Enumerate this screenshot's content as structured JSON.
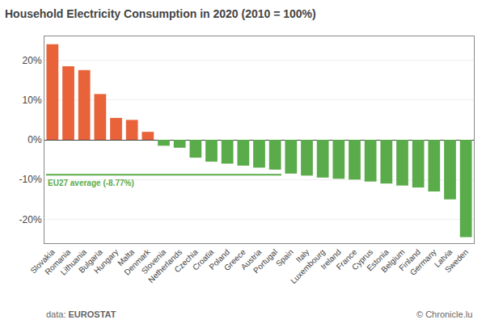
{
  "chart_data": {
    "type": "bar",
    "title": "Household Electricity Consumption in 2020 (2010 = 100%)",
    "categories": [
      "Slovakia",
      "Romania",
      "Lithuania",
      "Bulgaria",
      "Hungary",
      "Malta",
      "Denmark",
      "Slovenia",
      "Netherlands",
      "Czechia",
      "Croatia",
      "Poland",
      "Greece",
      "Austria",
      "Portugal",
      "Spain",
      "Italy",
      "Luxembourg",
      "Ireland",
      "France",
      "Cyprus",
      "Estonia",
      "Belgium",
      "Finland",
      "Germany",
      "Latvia",
      "Sweden"
    ],
    "values": [
      24.0,
      18.5,
      17.5,
      11.5,
      5.5,
      5.0,
      2.0,
      -1.5,
      -2.0,
      -4.5,
      -5.5,
      -6.0,
      -6.5,
      -7.0,
      -7.5,
      -8.5,
      -9.0,
      -9.5,
      -9.8,
      -10.0,
      -10.5,
      -11.0,
      -11.5,
      -12.0,
      -13.0,
      -15.0,
      -24.5
    ],
    "colors": [
      "#E8623A",
      "#E8623A",
      "#E8623A",
      "#E8623A",
      "#E8623A",
      "#E8623A",
      "#E8623A",
      "#5AAB4A",
      "#5AAB4A",
      "#5AAB4A",
      "#5AAB4A",
      "#5AAB4A",
      "#5AAB4A",
      "#5AAB4A",
      "#5AAB4A",
      "#5AAB4A",
      "#5AAB4A",
      "#5AAB4A",
      "#5AAB4A",
      "#5AAB4A",
      "#5AAB4A",
      "#5AAB4A",
      "#5AAB4A",
      "#5AAB4A",
      "#5AAB4A",
      "#5AAB4A",
      "#5AAB4A"
    ],
    "reference_line": {
      "value": -8.77,
      "label": "EU27 average (-8.77%)",
      "color": "#5AAB4A",
      "from": "Slovakia",
      "to": "Portugal"
    },
    "ylim": [
      -26,
      26
    ],
    "yticks": [
      {
        "value": -20,
        "label": "-20%"
      },
      {
        "value": -10,
        "label": "-10%"
      },
      {
        "value": 0,
        "label": "0%"
      },
      {
        "value": 10,
        "label": "10%"
      },
      {
        "value": 20,
        "label": "20%"
      }
    ],
    "grid": true,
    "source_label": "data:",
    "source": "EUROSTAT",
    "credit": "© Chronicle.lu"
  }
}
